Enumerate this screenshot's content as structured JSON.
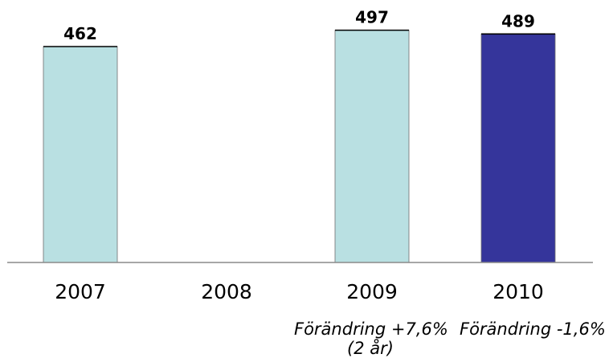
{
  "chart_data": {
    "type": "bar",
    "categories": [
      "2007",
      "2008",
      "2009",
      "2010"
    ],
    "values": [
      462,
      null,
      497,
      489
    ],
    "data_labels": [
      "462",
      "",
      "497",
      "489"
    ],
    "bar_colors": [
      "#b9e0e2",
      "#b9e0e2",
      "#b9e0e2",
      "#35359b"
    ],
    "grid": false,
    "legend": "none",
    "title": "",
    "xlabel": "",
    "ylabel": ""
  },
  "annotations": {
    "change_2009_line1": "Förändring +7,6%",
    "change_2009_line2": "(2 år)",
    "change_2010": "Förändring -1,6%"
  }
}
